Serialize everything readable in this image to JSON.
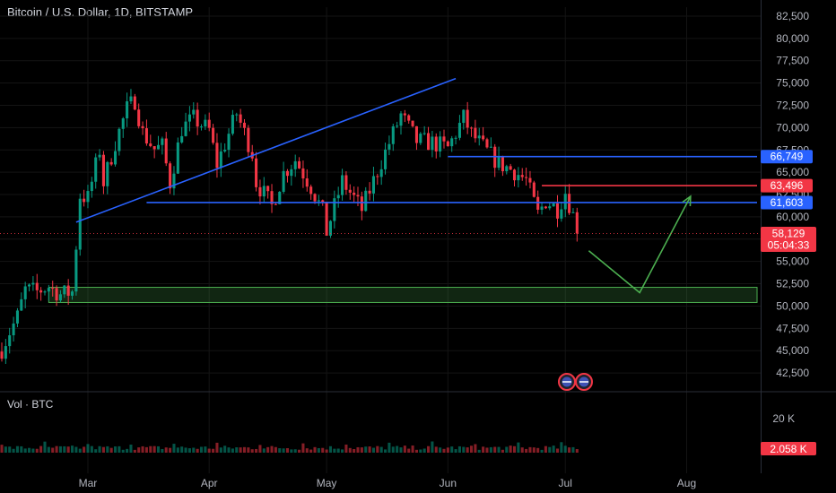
{
  "chart_data": {
    "type": "candlestick",
    "title": "Bitcoin / U.S. Dollar, 1D, BITSTAMP",
    "ylim": [
      40500,
      83500
    ],
    "y_ticks": [
      "82,500",
      "80,000",
      "77,500",
      "75,000",
      "72,500",
      "70,000",
      "67,500",
      "65,000",
      "62,500",
      "60,000",
      "57,500",
      "55,000",
      "52,500",
      "50,000",
      "47,500",
      "45,000",
      "42,500"
    ],
    "y_tick_values": [
      82500,
      80000,
      77500,
      75000,
      72500,
      70000,
      67500,
      65000,
      62500,
      60000,
      57500,
      55000,
      52500,
      50000,
      47500,
      45000,
      42500
    ],
    "x_ticks": [
      "Mar",
      "Apr",
      "May",
      "Jun",
      "Jul",
      "Aug"
    ],
    "x_tick_dates": [
      "2024-03-01",
      "2024-04-01",
      "2024-05-01",
      "2024-06-01",
      "2024-07-01",
      "2024-08-01"
    ],
    "x_range": [
      "2024-02-08",
      "2024-08-19"
    ],
    "price_labels": [
      {
        "text": "66,749",
        "value": 66749,
        "color": "#2962ff"
      },
      {
        "text": "63,496",
        "value": 63496,
        "color": "#f23645"
      },
      {
        "text": "61,603",
        "value": 61603,
        "color": "#2962ff"
      }
    ],
    "current_price": {
      "text": "58,129",
      "value": 58129,
      "countdown": "05:04:33",
      "color": "#f23645"
    },
    "candles": [
      {
        "date": "2024-02-08",
        "close": 45200
      },
      {
        "date": "2024-02-10",
        "close": 47100
      },
      {
        "date": "2024-02-12",
        "close": 48800
      },
      {
        "date": "2024-02-14",
        "close": 51800
      },
      {
        "date": "2024-02-17",
        "close": 51600
      },
      {
        "date": "2024-02-20",
        "close": 52200
      },
      {
        "date": "2024-02-23",
        "close": 51300
      },
      {
        "date": "2024-02-26",
        "close": 51600
      },
      {
        "date": "2024-02-27",
        "close": 56800
      },
      {
        "date": "2024-02-28",
        "close": 62400
      },
      {
        "date": "2024-03-01",
        "close": 62100
      },
      {
        "date": "2024-03-04",
        "close": 67500
      },
      {
        "date": "2024-03-05",
        "close": 63800
      },
      {
        "date": "2024-03-08",
        "close": 68300
      },
      {
        "date": "2024-03-11",
        "close": 72100
      },
      {
        "date": "2024-03-13",
        "close": 73100
      },
      {
        "date": "2024-03-15",
        "close": 69400
      },
      {
        "date": "2024-03-18",
        "close": 67600
      },
      {
        "date": "2024-03-20",
        "close": 67900
      },
      {
        "date": "2024-03-22",
        "close": 63800
      },
      {
        "date": "2024-03-25",
        "close": 69900
      },
      {
        "date": "2024-03-28",
        "close": 71000
      },
      {
        "date": "2024-04-01",
        "close": 69700
      },
      {
        "date": "2024-04-03",
        "close": 65900
      },
      {
        "date": "2024-04-08",
        "close": 71600
      },
      {
        "date": "2024-04-12",
        "close": 67200
      },
      {
        "date": "2024-04-13",
        "close": 63900
      },
      {
        "date": "2024-04-17",
        "close": 61200
      },
      {
        "date": "2024-04-20",
        "close": 64900
      },
      {
        "date": "2024-04-23",
        "close": 66400
      },
      {
        "date": "2024-04-27",
        "close": 63400
      },
      {
        "date": "2024-04-30",
        "close": 60600
      },
      {
        "date": "2024-05-01",
        "close": 58300
      },
      {
        "date": "2024-05-05",
        "close": 64000
      },
      {
        "date": "2024-05-10",
        "close": 60800
      },
      {
        "date": "2024-05-15",
        "close": 66200
      },
      {
        "date": "2024-05-20",
        "close": 71400
      },
      {
        "date": "2024-05-24",
        "close": 68500
      },
      {
        "date": "2024-05-28",
        "close": 68300
      },
      {
        "date": "2024-06-01",
        "close": 67700
      },
      {
        "date": "2024-06-05",
        "close": 71100
      },
      {
        "date": "2024-06-07",
        "close": 69300
      },
      {
        "date": "2024-06-11",
        "close": 67300
      },
      {
        "date": "2024-06-14",
        "close": 66000
      },
      {
        "date": "2024-06-18",
        "close": 65100
      },
      {
        "date": "2024-06-21",
        "close": 64100
      },
      {
        "date": "2024-06-24",
        "close": 60300
      },
      {
        "date": "2024-06-26",
        "close": 61800
      },
      {
        "date": "2024-06-29",
        "close": 60900
      },
      {
        "date": "2024-07-01",
        "close": 62800
      },
      {
        "date": "2024-07-03",
        "close": 60200
      },
      {
        "date": "2024-07-04",
        "close": 58129
      }
    ],
    "volume": {
      "label": "Vol · BTC",
      "tick": "20 K",
      "current": "2.058 K"
    },
    "annotations": [
      {
        "type": "trendline",
        "color": "#2962ff",
        "from": [
          "2024-02-27",
          59400
        ],
        "to": [
          "2024-06-03",
          75500
        ]
      },
      {
        "type": "hline",
        "color": "#2962ff",
        "from": [
          "2024-03-16",
          61603
        ],
        "to": [
          "2024-08-19",
          61603
        ]
      },
      {
        "type": "hline",
        "color": "#2962ff",
        "from": [
          "2024-06-01",
          66749
        ],
        "to": [
          "2024-08-19",
          66749
        ]
      },
      {
        "type": "hline",
        "color": "#f23645",
        "from": [
          "2024-06-25",
          63496
        ],
        "to": [
          "2024-08-19",
          63496
        ]
      },
      {
        "type": "zone",
        "color": "#4caf50",
        "from": [
          "2024-02-20",
          52100
        ],
        "to": [
          "2024-08-19",
          50400
        ]
      },
      {
        "type": "arrow",
        "color": "#4caf50",
        "points": [
          [
            "2024-07-07",
            56200
          ],
          [
            "2024-07-20",
            51500
          ],
          [
            "2024-08-02",
            62300
          ]
        ]
      }
    ]
  }
}
